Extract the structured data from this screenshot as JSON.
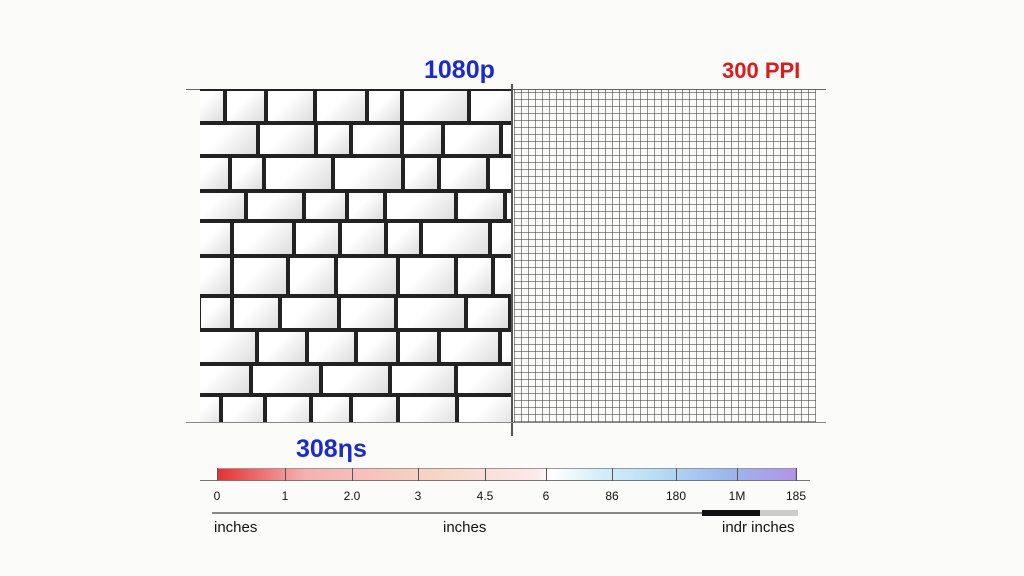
{
  "left_title": "1080p",
  "right_title": "300 PPI",
  "scale_label": "308ηs",
  "scale_ticks": [
    "0",
    "1",
    "2.0",
    "3",
    "4.5",
    "6",
    "86",
    "180",
    "1M",
    "185"
  ],
  "units": [
    "inches",
    "inches",
    "indr inches"
  ],
  "colors": {
    "left_title": "#1a2ad0",
    "right_title": "#e01a1a"
  }
}
